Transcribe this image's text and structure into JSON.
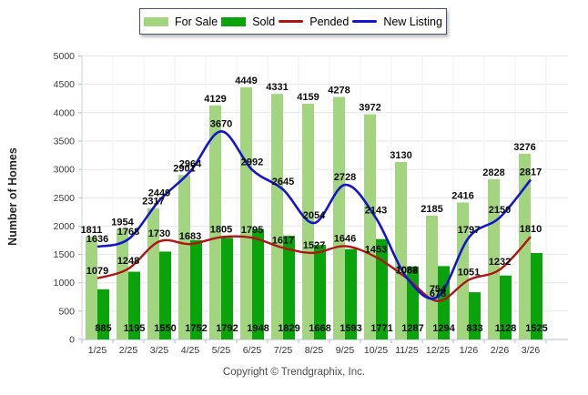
{
  "legend": {
    "items": [
      {
        "label": "For Sale",
        "type": "bar"
      },
      {
        "label": "Sold",
        "type": "bar"
      },
      {
        "label": "Pended",
        "type": "line"
      },
      {
        "label": "New Listing",
        "type": "line"
      }
    ]
  },
  "chart_data": {
    "type": "bar+line",
    "categories": [
      "1/25",
      "2/25",
      "3/25",
      "4/25",
      "5/25",
      "6/25",
      "7/25",
      "8/25",
      "9/25",
      "10/25",
      "11/25",
      "12/25",
      "1/26",
      "2/26",
      "3/26"
    ],
    "series": [
      {
        "name": "For Sale",
        "type": "bar",
        "color": "#A3D581",
        "values": [
          1811,
          1954,
          2317,
          2901,
          4129,
          4449,
          4331,
          4159,
          4278,
          3972,
          3130,
          2185,
          2416,
          2828,
          3276
        ]
      },
      {
        "name": "Sold",
        "type": "bar",
        "color": "#0BA30B",
        "values": [
          885,
          1195,
          1550,
          1752,
          1792,
          1948,
          1829,
          1668,
          1593,
          1771,
          1287,
          1294,
          833,
          1128,
          1525
        ]
      },
      {
        "name": "Pended",
        "type": "line",
        "color": "#AF1515",
        "values": [
          1079,
          1248,
          1730,
          1683,
          1805,
          1795,
          1617,
          1527,
          1646,
          1453,
          1082,
          678,
          1051,
          1232,
          1810
        ]
      },
      {
        "name": "New Listing",
        "type": "line",
        "color": "#1414CE",
        "values": [
          1636,
          1768,
          2449,
          2964,
          3670,
          2992,
          2645,
          2054,
          2728,
          2143,
          1088,
          754,
          1797,
          2150,
          2817
        ]
      }
    ],
    "title": "",
    "xlabel": "",
    "ylabel": "Number of Homes",
    "ylim": [
      0,
      5000
    ],
    "yticks": [
      0,
      500,
      1000,
      1500,
      2000,
      2500,
      3000,
      3500,
      4000,
      4500,
      5000
    ],
    "grid": true,
    "legend_position": "top"
  },
  "footer": {
    "copyright": "Copyright © Trendgraphix, Inc."
  }
}
